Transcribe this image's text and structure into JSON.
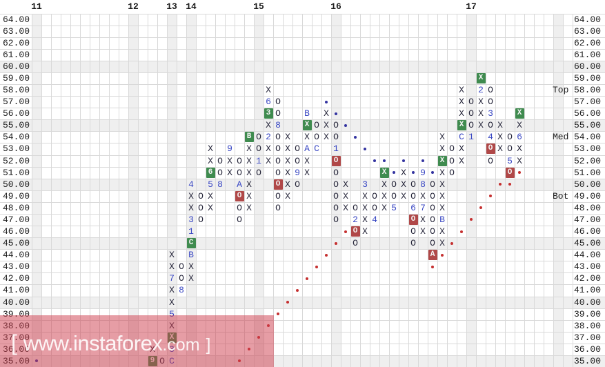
{
  "watermark": {
    "bracket_left": "[",
    "main": "www.instaforex",
    "suffix": ".com",
    "bracket_right": "]"
  },
  "axis": {
    "top_months": [
      {
        "col": 1,
        "label": "11"
      },
      {
        "col": 11,
        "label": "12"
      },
      {
        "col": 15,
        "label": "13"
      },
      {
        "col": 17,
        "label": "14"
      },
      {
        "col": 24,
        "label": "15"
      },
      {
        "col": 32,
        "label": "16"
      },
      {
        "col": 46,
        "label": "17"
      }
    ],
    "price_labels": [
      "64.00",
      "63.00",
      "62.00",
      "61.00",
      "60.00",
      "59.00",
      "58.00",
      "57.00",
      "56.00",
      "55.00",
      "54.00",
      "53.00",
      "52.00",
      "51.00",
      "50.00",
      "49.00",
      "48.00",
      "47.00",
      "46.00",
      "45.00",
      "44.00",
      "43.00",
      "42.00",
      "41.00",
      "40.00",
      "39.00",
      "38.00",
      "37.00",
      "36.00",
      "35.00"
    ]
  },
  "zone_labels": [
    {
      "row": 58,
      "label": "Top"
    },
    {
      "row": 54,
      "label": "Med"
    },
    {
      "row": 49,
      "label": "Bot"
    }
  ],
  "colors": {
    "grid_line": "#d9d9d9",
    "shaded_band": "#efefef",
    "symbol_dark": "#26263a",
    "month_code_blue": "#3947c3",
    "box_green": "#3f8b4f",
    "box_red": "#b04848",
    "trend_dot_red": "#c53030",
    "trend_dot_blue": "#3333a0",
    "watermark_pink": "rgba(205,60,75,0.5)",
    "watermark_text": "rgba(255,255,255,0.9)"
  },
  "chart_data": {
    "type": "point-and-figure",
    "box_size": 1,
    "price_high": 64,
    "price_low": 35,
    "column_count": 56,
    "grid": true,
    "style_legend": {
      "k": "plain-symbol",
      "b": "blue-month-code",
      "g": "green-box",
      "r": "red-box"
    },
    "shaded_rows": [
      60,
      55,
      50,
      45,
      40,
      35
    ],
    "shaded_cols": [
      1,
      11,
      15,
      17,
      24,
      32,
      46,
      55
    ],
    "cells": [
      [
        13,
        36,
        "X",
        "k"
      ],
      [
        13,
        35,
        "9",
        "g"
      ],
      [
        14,
        35,
        "O",
        "k"
      ],
      [
        15,
        44,
        "X",
        "k"
      ],
      [
        15,
        43,
        "X",
        "k"
      ],
      [
        15,
        42,
        "7",
        "b"
      ],
      [
        15,
        41,
        "X",
        "k"
      ],
      [
        15,
        40,
        "X",
        "k"
      ],
      [
        15,
        39,
        "5",
        "b"
      ],
      [
        15,
        38,
        "X",
        "k"
      ],
      [
        15,
        37,
        "X",
        "g"
      ],
      [
        15,
        36,
        "3",
        "b"
      ],
      [
        15,
        35,
        "C",
        "b"
      ],
      [
        16,
        43,
        "O",
        "k"
      ],
      [
        16,
        42,
        "O",
        "k"
      ],
      [
        16,
        41,
        "8",
        "b"
      ],
      [
        17,
        50,
        "4",
        "b"
      ],
      [
        17,
        49,
        "X",
        "k"
      ],
      [
        17,
        48,
        "X",
        "k"
      ],
      [
        17,
        47,
        "3",
        "b"
      ],
      [
        17,
        46,
        "1",
        "b"
      ],
      [
        17,
        45,
        "C",
        "g"
      ],
      [
        17,
        44,
        "B",
        "b"
      ],
      [
        17,
        43,
        "X",
        "k"
      ],
      [
        17,
        42,
        "X",
        "k"
      ],
      [
        18,
        49,
        "O",
        "k"
      ],
      [
        18,
        48,
        "O",
        "k"
      ],
      [
        18,
        47,
        "O",
        "k"
      ],
      [
        19,
        53,
        "X",
        "k"
      ],
      [
        19,
        52,
        "X",
        "k"
      ],
      [
        19,
        51,
        "6",
        "g"
      ],
      [
        19,
        50,
        "5",
        "b"
      ],
      [
        19,
        49,
        "X",
        "k"
      ],
      [
        19,
        48,
        "X",
        "k"
      ],
      [
        20,
        52,
        "O",
        "k"
      ],
      [
        20,
        51,
        "O",
        "k"
      ],
      [
        20,
        50,
        "8",
        "b"
      ],
      [
        21,
        53,
        "9",
        "b"
      ],
      [
        21,
        52,
        "X",
        "k"
      ],
      [
        21,
        51,
        "X",
        "k"
      ],
      [
        22,
        52,
        "O",
        "k"
      ],
      [
        22,
        51,
        "O",
        "k"
      ],
      [
        22,
        50,
        "A",
        "b"
      ],
      [
        22,
        49,
        "O",
        "r"
      ],
      [
        22,
        48,
        "O",
        "k"
      ],
      [
        22,
        47,
        "O",
        "k"
      ],
      [
        23,
        54,
        "B",
        "g"
      ],
      [
        23,
        53,
        "X",
        "k"
      ],
      [
        23,
        52,
        "X",
        "k"
      ],
      [
        23,
        51,
        "X",
        "k"
      ],
      [
        23,
        50,
        "X",
        "k"
      ],
      [
        23,
        49,
        "X",
        "k"
      ],
      [
        23,
        48,
        "X",
        "k"
      ],
      [
        24,
        54,
        "O",
        "k"
      ],
      [
        24,
        53,
        "O",
        "k"
      ],
      [
        24,
        52,
        "1",
        "b"
      ],
      [
        24,
        51,
        "O",
        "k"
      ],
      [
        25,
        58,
        "X",
        "k"
      ],
      [
        25,
        57,
        "6",
        "b"
      ],
      [
        25,
        56,
        "3",
        "g"
      ],
      [
        25,
        55,
        "X",
        "k"
      ],
      [
        25,
        54,
        "2",
        "b"
      ],
      [
        25,
        53,
        "X",
        "k"
      ],
      [
        25,
        52,
        "X",
        "k"
      ],
      [
        26,
        57,
        "O",
        "k"
      ],
      [
        26,
        56,
        "O",
        "k"
      ],
      [
        26,
        55,
        "8",
        "b"
      ],
      [
        26,
        54,
        "O",
        "k"
      ],
      [
        26,
        53,
        "O",
        "k"
      ],
      [
        26,
        52,
        "O",
        "k"
      ],
      [
        26,
        51,
        "O",
        "k"
      ],
      [
        26,
        50,
        "O",
        "r"
      ],
      [
        26,
        49,
        "O",
        "k"
      ],
      [
        26,
        48,
        "O",
        "k"
      ],
      [
        27,
        54,
        "X",
        "k"
      ],
      [
        27,
        53,
        "X",
        "k"
      ],
      [
        27,
        52,
        "X",
        "k"
      ],
      [
        27,
        51,
        "X",
        "k"
      ],
      [
        27,
        50,
        "X",
        "k"
      ],
      [
        27,
        49,
        "X",
        "k"
      ],
      [
        28,
        53,
        "O",
        "k"
      ],
      [
        28,
        52,
        "O",
        "k"
      ],
      [
        28,
        51,
        "9",
        "b"
      ],
      [
        28,
        50,
        "O",
        "k"
      ],
      [
        29,
        56,
        "B",
        "b"
      ],
      [
        29,
        55,
        "X",
        "g"
      ],
      [
        29,
        54,
        "X",
        "k"
      ],
      [
        29,
        53,
        "A",
        "b"
      ],
      [
        29,
        52,
        "X",
        "k"
      ],
      [
        29,
        51,
        "X",
        "k"
      ],
      [
        30,
        55,
        "O",
        "k"
      ],
      [
        30,
        54,
        "O",
        "k"
      ],
      [
        30,
        53,
        "C",
        "b"
      ],
      [
        31,
        56,
        "X",
        "k"
      ],
      [
        31,
        55,
        "X",
        "k"
      ],
      [
        31,
        54,
        "X",
        "k"
      ],
      [
        32,
        55,
        "O",
        "k"
      ],
      [
        32,
        54,
        "O",
        "k"
      ],
      [
        32,
        53,
        "1",
        "b"
      ],
      [
        32,
        52,
        "O",
        "r"
      ],
      [
        32,
        51,
        "O",
        "k"
      ],
      [
        32,
        50,
        "O",
        "k"
      ],
      [
        32,
        49,
        "O",
        "k"
      ],
      [
        32,
        48,
        "O",
        "k"
      ],
      [
        32,
        47,
        "O",
        "k"
      ],
      [
        33,
        50,
        "X",
        "k"
      ],
      [
        33,
        49,
        "X",
        "k"
      ],
      [
        33,
        48,
        "X",
        "k"
      ],
      [
        34,
        48,
        "O",
        "k"
      ],
      [
        34,
        47,
        "2",
        "b"
      ],
      [
        34,
        46,
        "O",
        "r"
      ],
      [
        34,
        45,
        "O",
        "k"
      ],
      [
        35,
        50,
        "3",
        "b"
      ],
      [
        35,
        49,
        "X",
        "k"
      ],
      [
        35,
        48,
        "X",
        "k"
      ],
      [
        35,
        47,
        "X",
        "k"
      ],
      [
        35,
        46,
        "X",
        "k"
      ],
      [
        36,
        49,
        "O",
        "k"
      ],
      [
        36,
        48,
        "O",
        "k"
      ],
      [
        36,
        47,
        "4",
        "b"
      ],
      [
        37,
        51,
        "X",
        "g"
      ],
      [
        37,
        50,
        "X",
        "k"
      ],
      [
        37,
        49,
        "X",
        "k"
      ],
      [
        37,
        48,
        "X",
        "k"
      ],
      [
        38,
        50,
        "O",
        "k"
      ],
      [
        38,
        49,
        "O",
        "k"
      ],
      [
        38,
        48,
        "5",
        "b"
      ],
      [
        39,
        51,
        "X",
        "k"
      ],
      [
        39,
        50,
        "X",
        "k"
      ],
      [
        39,
        49,
        "X",
        "k"
      ],
      [
        40,
        50,
        "O",
        "k"
      ],
      [
        40,
        49,
        "O",
        "k"
      ],
      [
        40,
        48,
        "6",
        "b"
      ],
      [
        40,
        47,
        "O",
        "r"
      ],
      [
        40,
        46,
        "O",
        "k"
      ],
      [
        40,
        45,
        "O",
        "k"
      ],
      [
        41,
        51,
        "9",
        "b"
      ],
      [
        41,
        50,
        "8",
        "b"
      ],
      [
        41,
        49,
        "X",
        "k"
      ],
      [
        41,
        48,
        "7",
        "b"
      ],
      [
        41,
        47,
        "X",
        "k"
      ],
      [
        41,
        46,
        "X",
        "k"
      ],
      [
        42,
        50,
        "O",
        "k"
      ],
      [
        42,
        49,
        "O",
        "k"
      ],
      [
        42,
        48,
        "O",
        "k"
      ],
      [
        42,
        47,
        "O",
        "k"
      ],
      [
        42,
        46,
        "O",
        "k"
      ],
      [
        42,
        45,
        "O",
        "k"
      ],
      [
        42,
        44,
        "A",
        "r"
      ],
      [
        43,
        54,
        "X",
        "k"
      ],
      [
        43,
        53,
        "X",
        "k"
      ],
      [
        43,
        52,
        "X",
        "g"
      ],
      [
        43,
        51,
        "X",
        "k"
      ],
      [
        43,
        50,
        "X",
        "k"
      ],
      [
        43,
        49,
        "X",
        "k"
      ],
      [
        43,
        48,
        "X",
        "k"
      ],
      [
        43,
        47,
        "B",
        "b"
      ],
      [
        43,
        46,
        "X",
        "k"
      ],
      [
        43,
        45,
        "X",
        "k"
      ],
      [
        44,
        53,
        "O",
        "k"
      ],
      [
        44,
        52,
        "O",
        "k"
      ],
      [
        44,
        51,
        "O",
        "k"
      ],
      [
        45,
        58,
        "X",
        "k"
      ],
      [
        45,
        57,
        "X",
        "k"
      ],
      [
        45,
        56,
        "X",
        "k"
      ],
      [
        45,
        55,
        "X",
        "g"
      ],
      [
        45,
        54,
        "C",
        "b"
      ],
      [
        45,
        53,
        "X",
        "k"
      ],
      [
        45,
        52,
        "X",
        "k"
      ],
      [
        46,
        57,
        "O",
        "k"
      ],
      [
        46,
        56,
        "O",
        "k"
      ],
      [
        46,
        55,
        "O",
        "k"
      ],
      [
        46,
        54,
        "1",
        "b"
      ],
      [
        47,
        59,
        "X",
        "g"
      ],
      [
        47,
        58,
        "2",
        "b"
      ],
      [
        47,
        57,
        "X",
        "k"
      ],
      [
        47,
        56,
        "X",
        "k"
      ],
      [
        47,
        55,
        "X",
        "k"
      ],
      [
        48,
        58,
        "O",
        "k"
      ],
      [
        48,
        57,
        "O",
        "k"
      ],
      [
        48,
        56,
        "3",
        "b"
      ],
      [
        48,
        55,
        "O",
        "k"
      ],
      [
        48,
        54,
        "4",
        "b"
      ],
      [
        48,
        53,
        "O",
        "r"
      ],
      [
        48,
        52,
        "O",
        "k"
      ],
      [
        49,
        55,
        "X",
        "k"
      ],
      [
        49,
        54,
        "X",
        "k"
      ],
      [
        49,
        53,
        "X",
        "k"
      ],
      [
        50,
        54,
        "O",
        "k"
      ],
      [
        50,
        53,
        "O",
        "k"
      ],
      [
        50,
        52,
        "5",
        "b"
      ],
      [
        50,
        51,
        "O",
        "r"
      ],
      [
        51,
        56,
        "X",
        "g"
      ],
      [
        51,
        55,
        "X",
        "k"
      ],
      [
        51,
        54,
        "6",
        "b"
      ],
      [
        51,
        53,
        "X",
        "k"
      ],
      [
        51,
        52,
        "X",
        "k"
      ]
    ],
    "red_dots": [
      [
        22,
        35
      ],
      [
        23,
        36
      ],
      [
        24,
        37
      ],
      [
        25,
        38
      ],
      [
        26,
        39
      ],
      [
        27,
        40
      ],
      [
        28,
        41
      ],
      [
        29,
        42
      ],
      [
        30,
        43
      ],
      [
        31,
        44
      ],
      [
        32,
        45
      ],
      [
        33,
        46
      ],
      [
        42,
        43
      ],
      [
        43,
        44
      ],
      [
        44,
        45
      ],
      [
        45,
        46
      ],
      [
        46,
        47
      ],
      [
        47,
        48
      ],
      [
        48,
        49
      ],
      [
        49,
        50
      ],
      [
        50,
        50
      ],
      [
        51,
        51
      ]
    ],
    "blue_dots": [
      [
        1,
        35
      ],
      [
        31,
        57
      ],
      [
        32,
        56
      ],
      [
        33,
        55
      ],
      [
        34,
        54
      ],
      [
        35,
        53
      ],
      [
        36,
        52
      ],
      [
        37,
        52
      ],
      [
        38,
        51
      ],
      [
        39,
        52
      ],
      [
        40,
        51
      ],
      [
        41,
        52
      ],
      [
        42,
        51
      ]
    ]
  }
}
